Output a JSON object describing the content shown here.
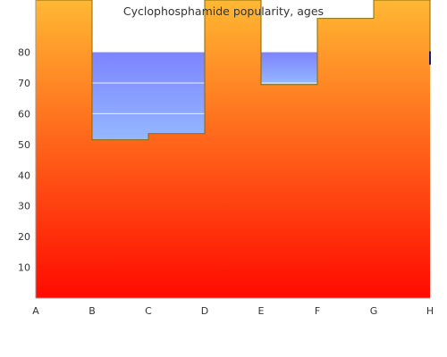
{
  "chart_data": {
    "type": "area",
    "title": "Cyclophosphamide popularity, ages",
    "xlabel": "",
    "ylabel": "",
    "categories": [
      "A",
      "B",
      "C",
      "D",
      "E",
      "F",
      "G",
      "H"
    ],
    "y_ticks": [
      10,
      20,
      30,
      40,
      50,
      60,
      70,
      80
    ],
    "ylim": [
      0,
      97
    ],
    "series": [
      {
        "values": [
          97,
          51.5,
          53.5,
          97,
          69.5,
          91,
          97,
          80
        ]
      }
    ],
    "bands": [
      {
        "from": "B",
        "to": "D",
        "y_low": 51.5,
        "y_high": 80
      },
      {
        "from": "E",
        "to": "F",
        "y_low": 69.5,
        "y_high": 80
      }
    ],
    "gradient": {
      "top": "#ffb833",
      "bottom": "#ff0a00"
    },
    "band_colors": {
      "top": "#7d84ff",
      "bottom": "#94b8ff"
    },
    "line_color": "#8a6a00",
    "grid": false,
    "legend": "none"
  }
}
